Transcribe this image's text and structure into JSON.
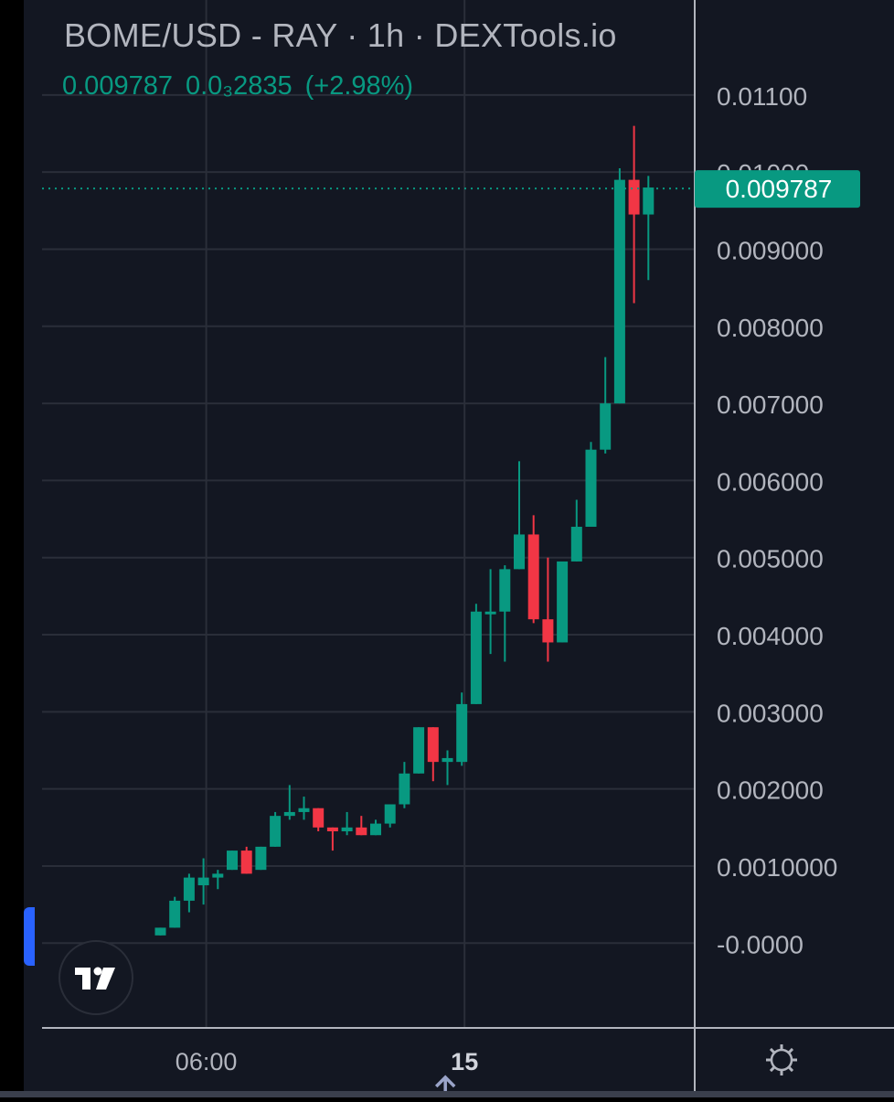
{
  "header": {
    "title": "BOME/USD - RAY · 1h · DEXTools.io",
    "price": "0.009787",
    "change": "0.0₃2835",
    "change_pct": "(+2.98%)"
  },
  "colors": {
    "background": "#131722",
    "up": "#089981",
    "down": "#f23645",
    "grid": "#2a2e39",
    "text": "#b2b5be",
    "axis_line": "#b2b5be"
  },
  "icons": {
    "logo": "tradingview-logo-icon",
    "settings": "gear-icon",
    "scroll": "arrow-up-icon"
  },
  "chart_data": {
    "type": "candlestick",
    "title": "BOME/USD - RAY · 1h · DEXTools.io",
    "last_price": 0.009787,
    "last_price_label": "0.009787",
    "y_tick_labels": [
      "0.01100",
      "0.01000",
      "0.009000",
      "0.008000",
      "0.007000",
      "0.006000",
      "0.005000",
      "0.004000",
      "0.003000",
      "0.002000",
      "0.0010000",
      "-0.0000"
    ],
    "y_tick_values": [
      0.011,
      0.01,
      0.009,
      0.008,
      0.007,
      0.006,
      0.005,
      0.004,
      0.003,
      0.002,
      0.001,
      0.0
    ],
    "ylim": [
      -0.0011,
      0.0119
    ],
    "x_tick_labels": [
      "06:00",
      "15"
    ],
    "x_tick_indices": [
      3,
      21
    ],
    "x_tick_bold": [
      false,
      true
    ],
    "grid": true,
    "candles": [
      {
        "o": 0.0001,
        "h": 0.0002,
        "l": 0.0001,
        "c": 0.0002
      },
      {
        "o": 0.0002,
        "h": 0.0006,
        "l": 0.0002,
        "c": 0.00055
      },
      {
        "o": 0.00055,
        "h": 0.0009,
        "l": 0.0004,
        "c": 0.00085
      },
      {
        "o": 0.00075,
        "h": 0.0011,
        "l": 0.0005,
        "c": 0.00085
      },
      {
        "o": 0.00085,
        "h": 0.00095,
        "l": 0.0007,
        "c": 0.0009
      },
      {
        "o": 0.00095,
        "h": 0.0012,
        "l": 0.00095,
        "c": 0.0012
      },
      {
        "o": 0.0012,
        "h": 0.00125,
        "l": 0.0009,
        "c": 0.0009
      },
      {
        "o": 0.00095,
        "h": 0.00125,
        "l": 0.00095,
        "c": 0.00125
      },
      {
        "o": 0.00125,
        "h": 0.0017,
        "l": 0.00125,
        "c": 0.00165
      },
      {
        "o": 0.00165,
        "h": 0.00205,
        "l": 0.0016,
        "c": 0.0017
      },
      {
        "o": 0.0017,
        "h": 0.0019,
        "l": 0.0016,
        "c": 0.00175
      },
      {
        "o": 0.00175,
        "h": 0.00175,
        "l": 0.00145,
        "c": 0.0015
      },
      {
        "o": 0.0015,
        "h": 0.0015,
        "l": 0.0012,
        "c": 0.00145
      },
      {
        "o": 0.00145,
        "h": 0.0017,
        "l": 0.0014,
        "c": 0.0015
      },
      {
        "o": 0.0015,
        "h": 0.00165,
        "l": 0.0014,
        "c": 0.0014
      },
      {
        "o": 0.0014,
        "h": 0.0016,
        "l": 0.0014,
        "c": 0.00155
      },
      {
        "o": 0.00155,
        "h": 0.0018,
        "l": 0.0015,
        "c": 0.0018
      },
      {
        "o": 0.0018,
        "h": 0.00235,
        "l": 0.00175,
        "c": 0.0022
      },
      {
        "o": 0.0022,
        "h": 0.0028,
        "l": 0.0022,
        "c": 0.0028
      },
      {
        "o": 0.0028,
        "h": 0.0028,
        "l": 0.0021,
        "c": 0.00235
      },
      {
        "o": 0.00235,
        "h": 0.0025,
        "l": 0.00205,
        "c": 0.0024
      },
      {
        "o": 0.00235,
        "h": 0.00325,
        "l": 0.0023,
        "c": 0.0031
      },
      {
        "o": 0.0031,
        "h": 0.0044,
        "l": 0.0031,
        "c": 0.0043
      },
      {
        "o": 0.0043,
        "h": 0.00485,
        "l": 0.00375,
        "c": 0.0043
      },
      {
        "o": 0.0043,
        "h": 0.0049,
        "l": 0.00365,
        "c": 0.00485
      },
      {
        "o": 0.00485,
        "h": 0.00625,
        "l": 0.00485,
        "c": 0.0053
      },
      {
        "o": 0.0053,
        "h": 0.00555,
        "l": 0.00415,
        "c": 0.0042
      },
      {
        "o": 0.0042,
        "h": 0.005,
        "l": 0.00365,
        "c": 0.0039
      },
      {
        "o": 0.0039,
        "h": 0.00495,
        "l": 0.0039,
        "c": 0.00495
      },
      {
        "o": 0.00495,
        "h": 0.00575,
        "l": 0.00495,
        "c": 0.0054
      },
      {
        "o": 0.0054,
        "h": 0.0065,
        "l": 0.0054,
        "c": 0.0064
      },
      {
        "o": 0.0064,
        "h": 0.0076,
        "l": 0.00635,
        "c": 0.007
      },
      {
        "o": 0.007,
        "h": 0.01005,
        "l": 0.007,
        "c": 0.0099
      },
      {
        "o": 0.0099,
        "h": 0.0106,
        "l": 0.0083,
        "c": 0.00945
      },
      {
        "o": 0.00945,
        "h": 0.00995,
        "l": 0.0086,
        "c": 0.0098
      }
    ]
  }
}
